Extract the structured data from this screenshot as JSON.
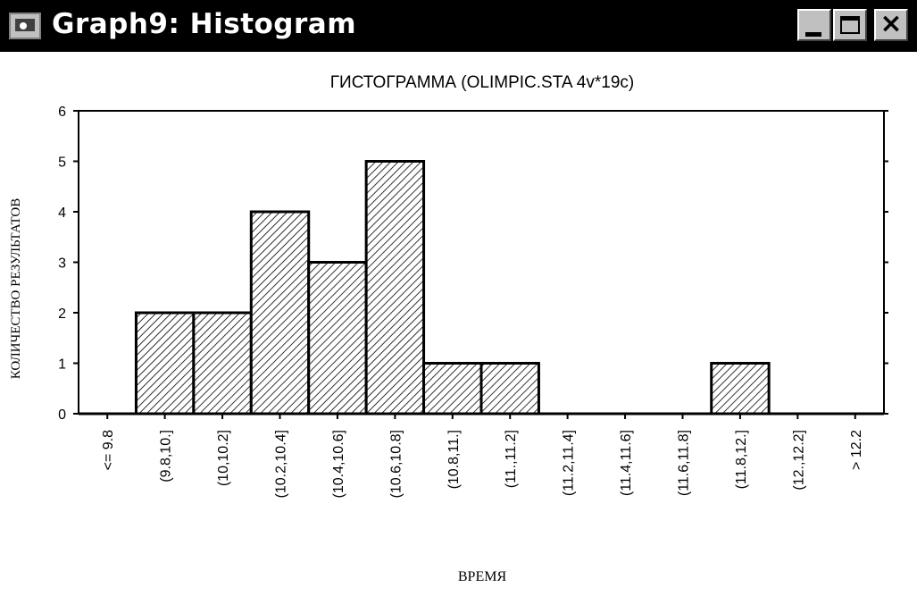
{
  "window": {
    "title": "Graph9: Histogram",
    "icon": "statistica-graph-icon",
    "controls": {
      "minimize": "minimize-icon",
      "maximize": "maximize-icon",
      "close": "×"
    }
  },
  "chart_data": {
    "type": "bar",
    "title": "ГИСТОГРАММА (OLIMPIC.STA 4v*19c)",
    "xlabel": "ВРЕМЯ",
    "ylabel": "КОЛИЧЕСТВО РЕЗУЛЬТАТОВ",
    "categories": [
      "<= 9.8",
      "(9.8,10.]",
      "(10,10.2]",
      "(10.2,10.4]",
      "(10.4,10.6]",
      "(10.6,10.8]",
      "(10.8,11.]",
      "(11.,11.2]",
      "(11.2,11.4]",
      "(11.4,11.6]",
      "(11.6,11.8]",
      "(11.8,12.]",
      "(12.,12.2]",
      "> 12.2"
    ],
    "values": [
      0,
      2,
      2,
      4,
      3,
      5,
      1,
      1,
      0,
      0,
      0,
      1,
      0,
      0
    ],
    "ylim": [
      0,
      6
    ],
    "yticks": [
      "0",
      "1",
      "2",
      "3",
      "4",
      "5",
      "6"
    ],
    "bar_fill": "hatched",
    "grid": false,
    "legend": "none"
  },
  "colors": {
    "titlebar": "#000000",
    "titlebar_text": "#ffffff",
    "button_face": "#c0c0c0",
    "bar_stroke": "#000000",
    "background": "#ffffff"
  }
}
